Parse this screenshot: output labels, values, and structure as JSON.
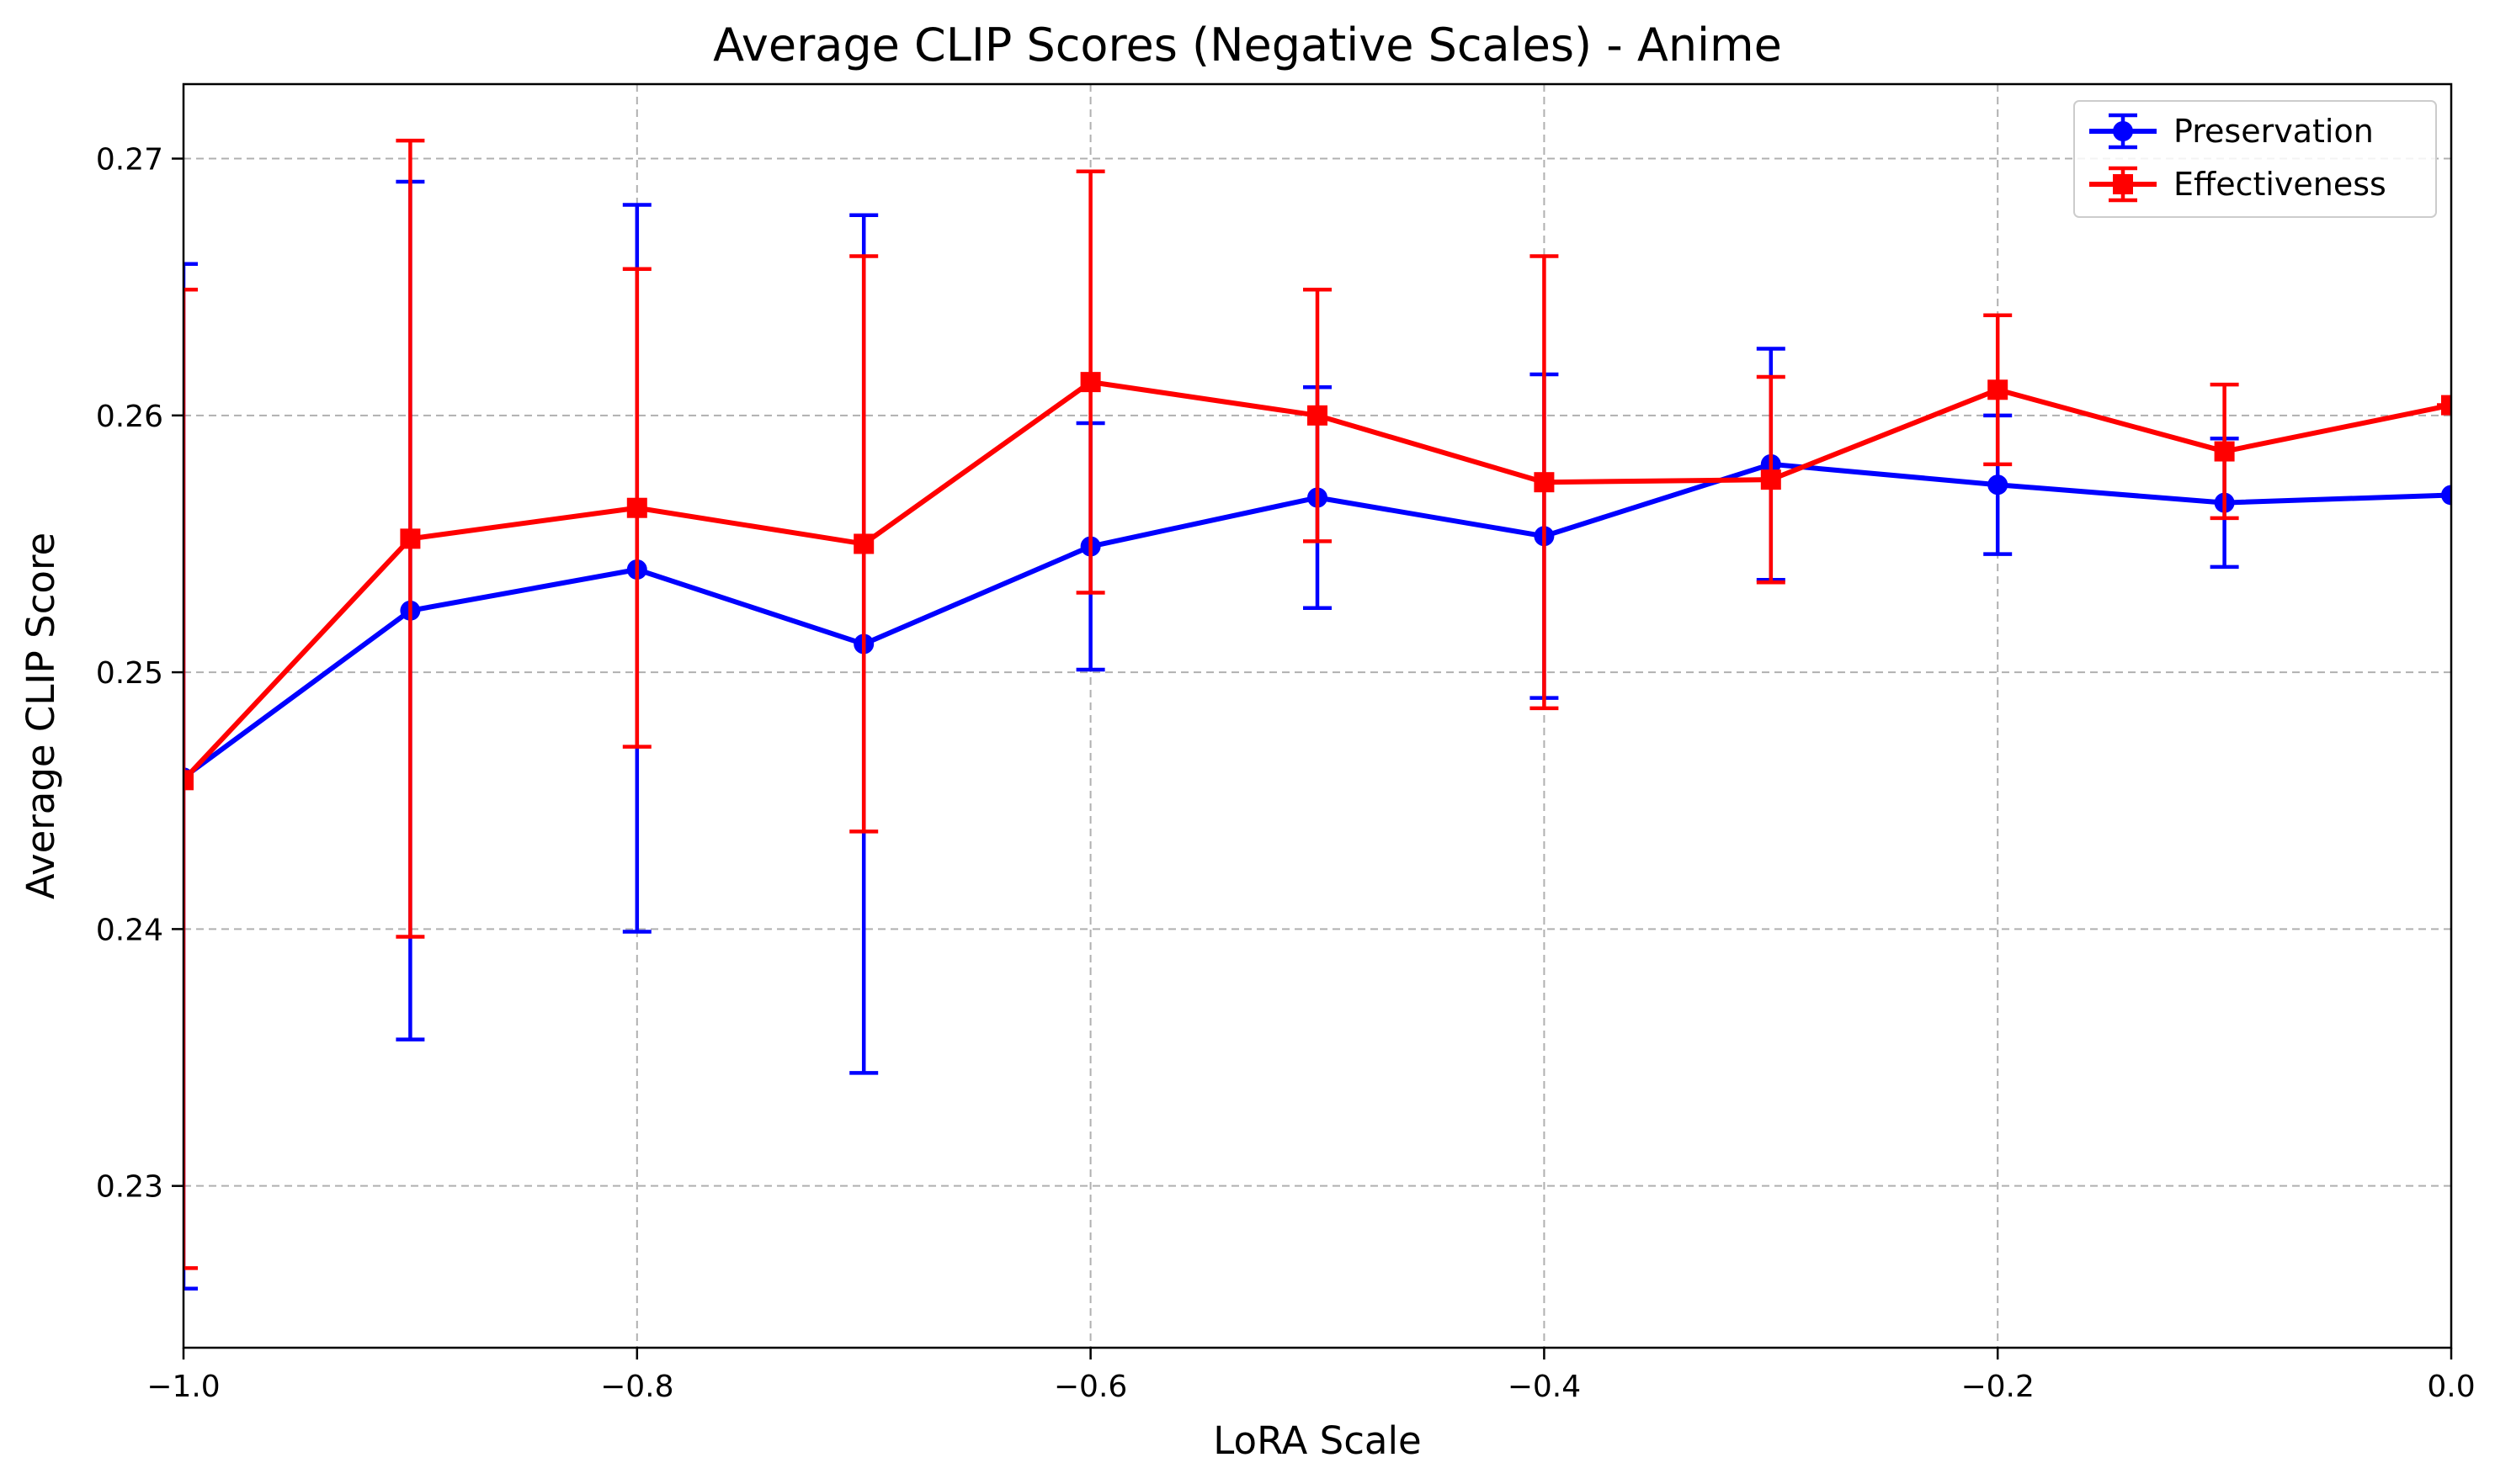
{
  "chart_data": {
    "type": "line",
    "title": "Average CLIP Scores (Negative Scales) - Anime",
    "xlabel": "LoRA Scale",
    "ylabel": "Average CLIP Score",
    "xlim": [
      -1.0,
      0.0
    ],
    "ylim": [
      0.2237,
      0.2729
    ],
    "xticks": [
      -1.0,
      -0.8,
      -0.6,
      -0.4,
      -0.2,
      0.0
    ],
    "xtick_labels": [
      "−1.0",
      "−0.8",
      "−0.6",
      "−0.4",
      "−0.2",
      "0.0"
    ],
    "yticks": [
      0.23,
      0.24,
      0.25,
      0.26,
      0.27
    ],
    "ytick_labels": [
      "0.23",
      "0.24",
      "0.25",
      "0.26",
      "0.27"
    ],
    "grid": true,
    "legend_position": "top-right",
    "x": [
      -1.0,
      -0.9,
      -0.8,
      -0.7,
      -0.6,
      -0.5,
      -0.4,
      -0.3,
      -0.2,
      -0.1,
      0.0
    ],
    "series": [
      {
        "name": "Preservation",
        "color": "#0000ff",
        "marker": "circle",
        "values": [
          0.2459,
          0.2524,
          0.254,
          0.2511,
          0.2549,
          0.2568,
          0.2553,
          0.2581,
          0.2573,
          0.2566,
          0.2569
        ],
        "err_low": [
          0.226,
          0.2357,
          0.2399,
          0.2344,
          0.2501,
          0.2525,
          0.249,
          0.2536,
          0.2546,
          0.2541,
          0.2569
        ],
        "err_high": [
          0.2659,
          0.2691,
          0.2682,
          0.2678,
          0.2597,
          0.2611,
          0.2616,
          0.2626,
          0.26,
          0.2591,
          0.2569
        ]
      },
      {
        "name": "Effectiveness",
        "color": "#ff0000",
        "marker": "square",
        "values": [
          0.2458,
          0.2552,
          0.2564,
          0.255,
          0.2613,
          0.26,
          0.2574,
          0.2575,
          0.261,
          0.2586,
          0.2604
        ],
        "err_low": [
          0.2268,
          0.2397,
          0.2471,
          0.2438,
          0.2531,
          0.2551,
          0.2486,
          0.2535,
          0.2581,
          0.256,
          0.2604
        ],
        "err_high": [
          0.2649,
          0.2707,
          0.2657,
          0.2662,
          0.2695,
          0.2649,
          0.2662,
          0.2615,
          0.2639,
          0.2612,
          0.2604
        ]
      }
    ]
  }
}
